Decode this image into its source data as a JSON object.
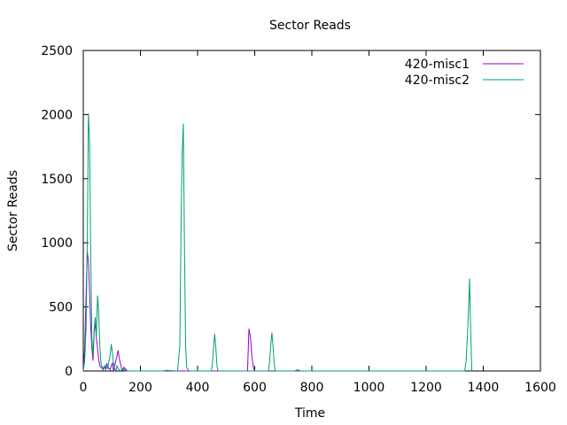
{
  "chart_data": {
    "type": "line",
    "title": "Sector Reads",
    "xlabel": "Time",
    "ylabel": "Sector Reads",
    "xlim": [
      0,
      1600
    ],
    "ylim": [
      0,
      2500
    ],
    "xticks": [
      0,
      200,
      400,
      600,
      800,
      1000,
      1200,
      1400,
      1600
    ],
    "yticks": [
      0,
      500,
      1000,
      1500,
      2000,
      2500
    ],
    "grid": false,
    "legend_position": "top-right",
    "series": [
      {
        "name": "420-misc1",
        "color": "#9400d3",
        "x": [
          0,
          5,
          10,
          14,
          18,
          22,
          26,
          30,
          34,
          38,
          42,
          46,
          50,
          54,
          58,
          62,
          66,
          70,
          74,
          78,
          82,
          86,
          90,
          94,
          98,
          102,
          106,
          110,
          114,
          118,
          122,
          126,
          130,
          134,
          138,
          142,
          146,
          150,
          155,
          575,
          580,
          585,
          590,
          595,
          600,
          740,
          750,
          760
        ],
        "y": [
          0,
          180,
          600,
          930,
          860,
          620,
          340,
          180,
          80,
          300,
          380,
          260,
          180,
          90,
          40,
          30,
          20,
          10,
          40,
          20,
          60,
          30,
          20,
          10,
          40,
          60,
          0,
          40,
          80,
          120,
          160,
          100,
          60,
          20,
          0,
          30,
          20,
          10,
          0,
          0,
          330,
          260,
          120,
          30,
          0,
          0,
          8,
          0
        ]
      },
      {
        "name": "420-misc2",
        "color": "#009e73",
        "x": [
          0,
          5,
          10,
          14,
          18,
          22,
          26,
          30,
          34,
          38,
          42,
          46,
          50,
          54,
          58,
          62,
          66,
          70,
          74,
          78,
          82,
          86,
          90,
          94,
          98,
          102,
          106,
          110,
          114,
          118,
          122,
          126,
          130,
          140,
          150,
          160,
          280,
          290,
          330,
          338,
          342,
          346,
          350,
          354,
          358,
          362,
          370,
          448,
          452,
          456,
          460,
          464,
          468,
          472,
          648,
          652,
          656,
          660,
          664,
          668,
          672,
          1335,
          1340,
          1344,
          1348,
          1352,
          1356,
          1360
        ],
        "y": [
          0,
          80,
          340,
          1000,
          2010,
          1800,
          900,
          250,
          120,
          320,
          420,
          280,
          590,
          450,
          200,
          60,
          30,
          20,
          40,
          10,
          30,
          20,
          80,
          120,
          210,
          140,
          60,
          20,
          0,
          40,
          20,
          10,
          0,
          20,
          0,
          0,
          0,
          5,
          0,
          200,
          1100,
          1680,
          1930,
          1000,
          200,
          30,
          0,
          0,
          60,
          180,
          290,
          180,
          40,
          0,
          0,
          70,
          200,
          300,
          200,
          60,
          0,
          0,
          80,
          250,
          450,
          720,
          300,
          0
        ]
      }
    ]
  }
}
